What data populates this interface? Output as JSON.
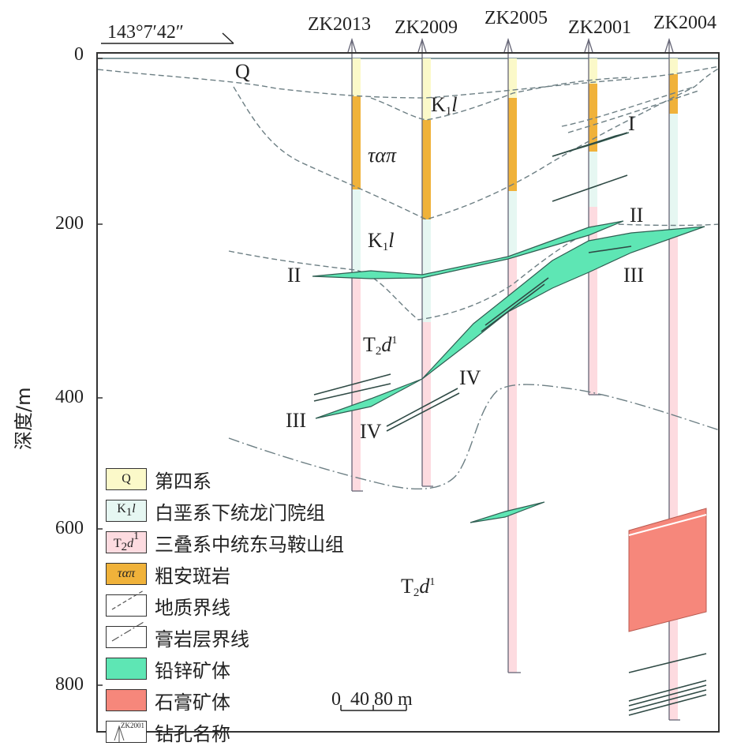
{
  "coordinate": "143°7′42″",
  "y_axis": {
    "label": "深度/m",
    "ticks": [
      "0",
      "200",
      "400",
      "600",
      "800"
    ]
  },
  "boreholes": [
    "ZK2013",
    "ZK2009",
    "ZK2005",
    "ZK2001",
    "ZK2004"
  ],
  "labels": {
    "q": "Q",
    "k1l_top": "K",
    "k1l_top_sub": "1",
    "k1l_top_i": "l",
    "taupi": "ταπ",
    "k1l_mid": "K",
    "k1l_mid_sub": "1",
    "k1l_mid_i": "l",
    "t2d1_mid": "T",
    "t2d1_mid_sub": "2",
    "t2d1_mid_i": "d",
    "t2d1_mid_sup": "1",
    "t2d1_low": "T",
    "t2d1_low_sub": "2",
    "t2d1_low_i": "d",
    "t2d1_low_sup": "1",
    "ore_i": "I",
    "ore_ii_right": "II",
    "ore_ii_left": "II",
    "ore_iii_right": "III",
    "ore_iii_left": "III",
    "ore_iv_right": "IV",
    "ore_iv_left": "IV"
  },
  "legend": [
    {
      "symbol": "Q",
      "text": "第四系",
      "color": "#fbf9c9"
    },
    {
      "symbol": "K1l",
      "text": "白垩系下统龙门院组",
      "color": "#e6f7f2"
    },
    {
      "symbol": "T2d1",
      "text": "三叠系中统东马鞍山组",
      "color": "#fddbe0"
    },
    {
      "symbol": "ταπ",
      "text": "粗安斑岩",
      "color": "#f0b23a"
    },
    {
      "symbol": "",
      "text": "地质界线",
      "color": "#ffffff"
    },
    {
      "symbol": "",
      "text": "膏岩层界线",
      "color": "#ffffff"
    },
    {
      "symbol": "",
      "text": "铅锌矿体",
      "color": "#5ee6b4"
    },
    {
      "symbol": "",
      "text": "石膏矿体",
      "color": "#f6877b"
    },
    {
      "symbol": "ZK2001",
      "text": "钻孔名称",
      "color": "#ffffff"
    }
  ],
  "scale_bar": {
    "text": "0  40 80 m"
  },
  "colors": {
    "lead_zinc": "#5ee6b4",
    "gypsum": "#f6877b",
    "porphyry": "#f0b23a",
    "quaternary": "#fbf9c9",
    "cretaceous": "#e6f7f2",
    "triassic": "#fddbe0"
  }
}
